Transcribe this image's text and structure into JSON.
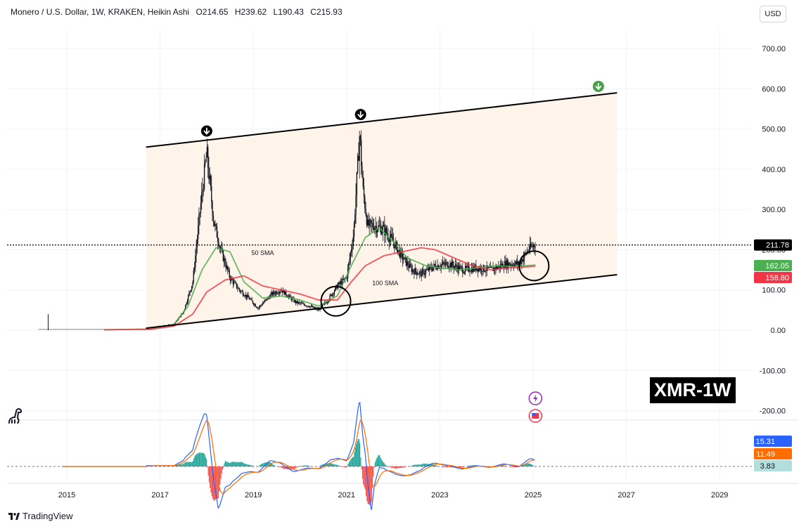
{
  "header": {
    "symbol": "Monero / U.S. Dollar, 1W, KRAKEN, Heikin Ashi",
    "open": "O214.65",
    "high": "H239.62",
    "low": "L190.43",
    "close": "C215.93"
  },
  "currency_label": "USD",
  "ticker_badge": "XMR-1W",
  "footer_brand": "TradingView",
  "colors": {
    "up": "#089981",
    "down": "#f23645",
    "sma50": "#4caf50",
    "sma100": "#f23645",
    "channel_fill": "#fff3e8",
    "macd": "#2962ff",
    "signal": "#ff6d00",
    "price_tag": "#000000"
  },
  "chart_data": {
    "type": "line",
    "title": "Monero / U.S. Dollar, 1W, KRAKEN, Heikin Ashi",
    "x_ticks": [
      "2015",
      "2017",
      "2019",
      "2021",
      "2023",
      "2025",
      "2027",
      "2029"
    ],
    "y_ticks": [
      "700.00",
      "600.00",
      "500.00",
      "400.00",
      "300.00",
      "200.00",
      "100.00",
      "0.00",
      "-100.00",
      "-200.00"
    ],
    "ylim": [
      -200,
      700
    ],
    "price_series": {
      "name": "XMR",
      "x": [
        2014.6,
        2015.5,
        2016.5,
        2016.9,
        2017.3,
        2017.5,
        2017.7,
        2017.85,
        2018.0,
        2018.15,
        2018.3,
        2018.5,
        2018.7,
        2018.9,
        2019.1,
        2019.4,
        2019.6,
        2019.9,
        2020.2,
        2020.4,
        2020.6,
        2020.8,
        2021.0,
        2021.15,
        2021.28,
        2021.35,
        2021.45,
        2021.6,
        2021.8,
        2022.0,
        2022.2,
        2022.4,
        2022.6,
        2022.9,
        2023.2,
        2023.5,
        2023.8,
        2024.1,
        2024.4,
        2024.7,
        2024.9,
        2025.05
      ],
      "values": [
        2,
        1,
        1,
        8,
        15,
        45,
        120,
        290,
        440,
        270,
        200,
        130,
        100,
        80,
        55,
        90,
        100,
        70,
        60,
        50,
        75,
        110,
        130,
        240,
        490,
        350,
        260,
        260,
        250,
        220,
        180,
        150,
        140,
        160,
        165,
        150,
        155,
        150,
        165,
        165,
        200,
        215
      ]
    },
    "sma50": {
      "name": "50 SMA",
      "x": [
        2015.8,
        2016.8,
        2017.3,
        2017.6,
        2017.9,
        2018.2,
        2018.5,
        2018.8,
        2019.2,
        2019.6,
        2020.0,
        2020.4,
        2020.8,
        2021.1,
        2021.4,
        2021.7,
        2022.0,
        2022.3,
        2022.7,
        2023.0,
        2023.4,
        2023.8,
        2024.2,
        2024.6,
        2025.05
      ],
      "values": [
        1,
        3,
        15,
        60,
        150,
        205,
        195,
        120,
        80,
        85,
        75,
        60,
        85,
        160,
        230,
        255,
        220,
        180,
        160,
        155,
        150,
        155,
        160,
        158,
        162.05
      ]
    },
    "sma100": {
      "name": "100 SMA",
      "x": [
        2015.8,
        2016.8,
        2017.3,
        2017.7,
        2018.0,
        2018.4,
        2018.8,
        2019.2,
        2019.6,
        2020.0,
        2020.4,
        2020.8,
        2021.1,
        2021.4,
        2021.8,
        2022.2,
        2022.6,
        2022.9,
        2023.3,
        2023.7,
        2024.1,
        2024.5,
        2025.05
      ],
      "values": [
        1,
        2,
        10,
        40,
        95,
        125,
        135,
        110,
        100,
        90,
        75,
        75,
        120,
        160,
        185,
        195,
        205,
        200,
        180,
        160,
        150,
        155,
        158.8
      ]
    },
    "channel_upper": {
      "x": [
        2016.7,
        2026.8
      ],
      "values": [
        455,
        590
      ]
    },
    "channel_lower": {
      "x": [
        2016.7,
        2026.8
      ],
      "values": [
        5,
        138
      ]
    },
    "current_price": 211.78,
    "price_labels": [
      {
        "text": "211.78",
        "value": 211.78,
        "color": "#000000"
      },
      {
        "text": "162.05",
        "value": 162.05,
        "color": "#4caf50"
      },
      {
        "text": "158.80",
        "value": 158.8,
        "color": "#f23645"
      }
    ],
    "annotations": [
      "50 SMA",
      "100 SMA"
    ],
    "macd_labels": [
      {
        "text": "15.31",
        "color": "#2962ff"
      },
      {
        "text": "11.49",
        "color": "#ff6d00"
      },
      {
        "text": "3.83",
        "color": "#b2dfdb"
      }
    ]
  }
}
